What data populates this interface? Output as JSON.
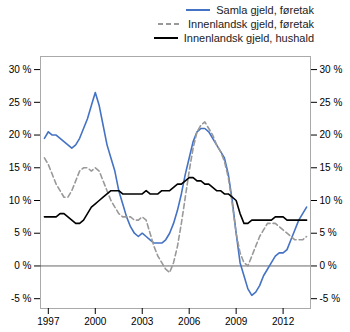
{
  "chart_data": {
    "type": "line",
    "x": [
      1996.75,
      1997.0,
      1997.25,
      1997.5,
      1997.75,
      1998.0,
      1998.25,
      1998.5,
      1998.75,
      1999.0,
      1999.25,
      1999.5,
      1999.75,
      2000.0,
      2000.25,
      2000.5,
      2000.75,
      2001.0,
      2001.25,
      2001.5,
      2001.75,
      2002.0,
      2002.25,
      2002.5,
      2002.75,
      2003.0,
      2003.25,
      2003.5,
      2003.75,
      2004.0,
      2004.25,
      2004.5,
      2004.75,
      2005.0,
      2005.25,
      2005.5,
      2005.75,
      2006.0,
      2006.25,
      2006.5,
      2006.75,
      2007.0,
      2007.25,
      2007.5,
      2007.75,
      2008.0,
      2008.25,
      2008.5,
      2008.75,
      2009.0,
      2009.25,
      2009.5,
      2009.75,
      2010.0,
      2010.25,
      2010.5,
      2010.75,
      2011.0,
      2011.25,
      2011.5,
      2011.75,
      2012.0,
      2012.25,
      2012.5,
      2012.75,
      2013.0,
      2013.25,
      2013.5
    ],
    "xlim": [
      1996.5,
      2013.75
    ],
    "xticks": [
      1997,
      2000,
      2003,
      2006,
      2009,
      2012
    ],
    "ylim": [
      -6.5,
      32
    ],
    "yticks": [
      {
        "value": -5,
        "label": "-5 %"
      },
      {
        "value": 0,
        "label": "0 %"
      },
      {
        "value": 5,
        "label": "5 %"
      },
      {
        "value": 10,
        "label": "10 %"
      },
      {
        "value": 15,
        "label": "15 %"
      },
      {
        "value": 20,
        "label": "20 %"
      },
      {
        "value": 25,
        "label": "25 %"
      },
      {
        "value": 30,
        "label": "30 %"
      }
    ],
    "y2lim": [
      -6.5,
      32
    ],
    "y2ticks": [
      {
        "value": -5,
        "label": "-5 %"
      },
      {
        "value": 0,
        "label": "0 %"
      },
      {
        "value": 5,
        "label": "5 %"
      },
      {
        "value": 10,
        "label": "10 %"
      },
      {
        "value": 15,
        "label": "15 %"
      },
      {
        "value": 20,
        "label": "20 %"
      },
      {
        "value": 25,
        "label": "25 %"
      },
      {
        "value": 30,
        "label": "30 %"
      }
    ],
    "legend": "upper right",
    "series": [
      {
        "name": "Samla gjeld, føretak",
        "color": "#4472c4",
        "line_style": "solid",
        "values": [
          19.5,
          20.5,
          20.0,
          20.0,
          19.5,
          19.0,
          18.5,
          18.0,
          18.5,
          19.5,
          21.0,
          22.5,
          24.5,
          26.5,
          24.5,
          21.5,
          18.5,
          16.5,
          14.5,
          11.5,
          9.5,
          7.5,
          6.0,
          5.0,
          4.5,
          5.0,
          4.5,
          4.0,
          3.5,
          3.5,
          3.5,
          4.0,
          5.0,
          6.5,
          8.5,
          11.0,
          14.0,
          16.5,
          19.0,
          20.5,
          21.0,
          21.0,
          20.5,
          19.5,
          18.5,
          17.5,
          16.5,
          14.0,
          10.0,
          5.0,
          0.5,
          -1.5,
          -3.5,
          -4.5,
          -4.0,
          -3.0,
          -1.5,
          -0.5,
          0.5,
          1.5,
          2.0,
          2.0,
          2.5,
          4.0,
          5.5,
          7.0,
          8.0,
          9.0
        ]
      },
      {
        "name": "Innenlandsk gjeld, føretak",
        "color": "#999999",
        "line_style": "dashed",
        "values": [
          16.5,
          15.5,
          14.0,
          12.5,
          11.5,
          10.5,
          10.5,
          11.5,
          13.0,
          14.5,
          15.0,
          15.0,
          14.5,
          15.0,
          14.5,
          13.0,
          11.5,
          10.0,
          9.0,
          8.0,
          7.5,
          7.5,
          7.5,
          7.0,
          7.0,
          7.5,
          7.0,
          5.0,
          3.0,
          1.5,
          0.5,
          -0.5,
          -1.0,
          0.5,
          3.0,
          6.5,
          10.5,
          14.5,
          18.0,
          20.5,
          21.5,
          22.0,
          21.0,
          20.0,
          18.5,
          17.5,
          16.0,
          13.5,
          9.5,
          5.0,
          2.0,
          0.5,
          0.0,
          1.5,
          3.0,
          4.5,
          5.5,
          6.5,
          6.5,
          6.5,
          6.0,
          5.5,
          5.0,
          4.5,
          4.0,
          4.0,
          4.0,
          4.5
        ]
      },
      {
        "name": "Innenlandsk gjeld, hushald",
        "color": "#000000",
        "line_style": "solid",
        "values": [
          7.5,
          7.5,
          7.5,
          7.5,
          8.0,
          8.0,
          7.5,
          7.0,
          6.5,
          6.5,
          7.0,
          8.0,
          9.0,
          9.5,
          10.0,
          10.5,
          11.0,
          11.5,
          11.5,
          11.5,
          11.0,
          11.0,
          11.0,
          11.0,
          11.0,
          11.0,
          11.5,
          11.0,
          11.0,
          11.0,
          11.5,
          11.5,
          11.5,
          12.0,
          12.5,
          12.5,
          13.0,
          13.5,
          13.5,
          13.0,
          13.0,
          12.5,
          12.5,
          12.0,
          11.5,
          11.5,
          11.0,
          11.0,
          10.5,
          10.0,
          8.0,
          6.5,
          6.5,
          7.0,
          7.0,
          7.0,
          7.0,
          7.0,
          7.0,
          7.5,
          7.5,
          7.5,
          7.0,
          7.0,
          7.0,
          7.0,
          7.0,
          7.0
        ]
      }
    ]
  }
}
